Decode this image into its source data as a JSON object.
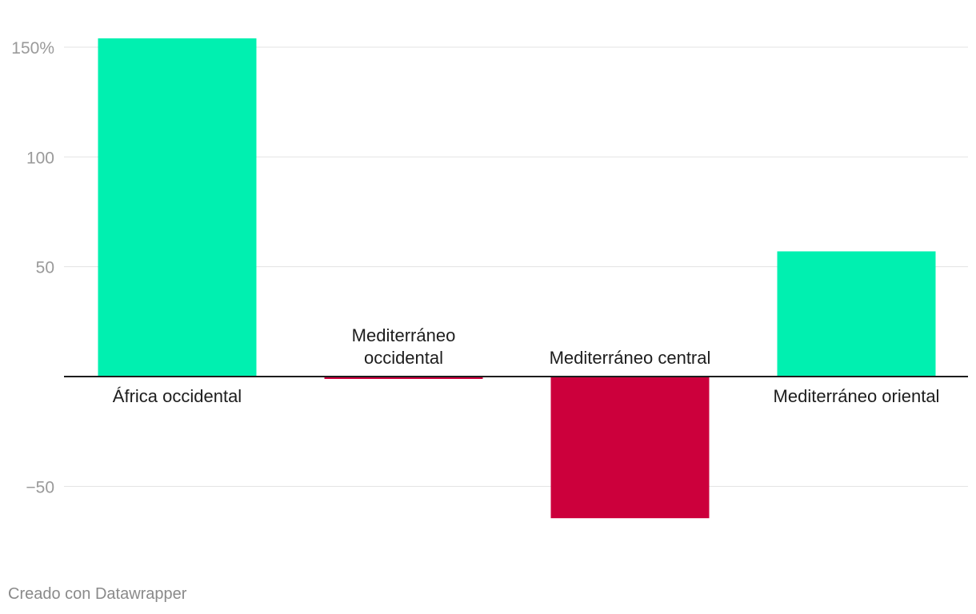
{
  "chart_data": {
    "type": "bar",
    "categories": [
      "África occidental",
      "Mediterráneo occidental",
      "Mediterráneo central",
      "Mediterráneo oriental"
    ],
    "category_lines": [
      [
        "África occidental"
      ],
      [
        "Mediterráneo",
        "occidental"
      ],
      [
        "Mediterráneo central"
      ],
      [
        "Mediterráneo oriental"
      ]
    ],
    "values": [
      154,
      -1,
      -64.5,
      57
    ],
    "ylim": [
      -70,
      160
    ],
    "yticks": [
      150,
      100,
      50,
      -50
    ],
    "ytick_labels": [
      "150%",
      "100",
      "50",
      "−50"
    ],
    "title": "",
    "xlabel": "",
    "ylabel": "",
    "grid": true,
    "colors": {
      "positive": "#00f0b0",
      "negative": "#cc003c",
      "grid": "#e3e3e3",
      "axis": "#1d1d1d"
    }
  },
  "footer": {
    "credit": "Creado con Datawrapper"
  }
}
